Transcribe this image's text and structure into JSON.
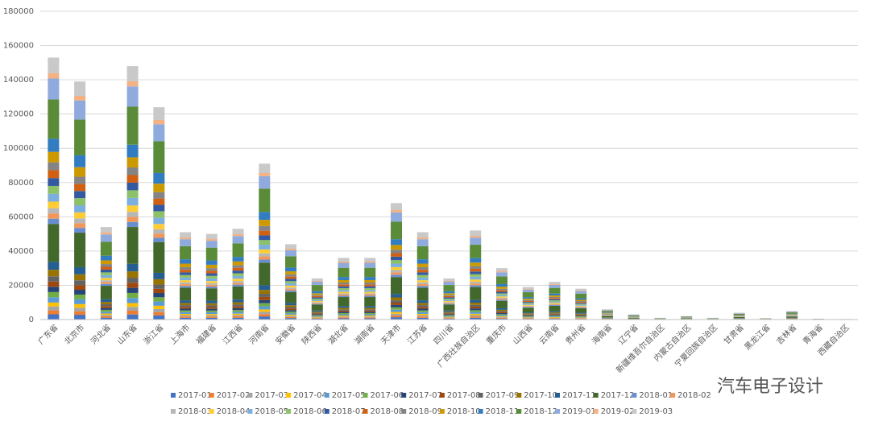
{
  "chart_data": {
    "type": "stacked_bar",
    "watermark": "汽车电子设计",
    "categories": [
      "广东省",
      "北京市",
      "河北省",
      "山东省",
      "浙江省",
      "上海市",
      "福建省",
      "江西省",
      "河南省",
      "安徽省",
      "陕西省",
      "湖北省",
      "湖南省",
      "天津市",
      "江苏省",
      "四川省",
      "广西壮族自治区",
      "重庆市",
      "山西省",
      "云南省",
      "贵州省",
      "海南省",
      "辽宁省",
      "新疆维吾尔自治区",
      "内蒙古自治区",
      "宁夏回族自治区",
      "甘肃省",
      "黑龙江省",
      "吉林省",
      "青海省",
      "西藏自治区"
    ],
    "ylim": [
      0,
      180000
    ],
    "yticks": [
      0,
      20000,
      40000,
      60000,
      80000,
      100000,
      120000,
      140000,
      160000,
      180000
    ],
    "grid": true,
    "series_names": [
      "2017-01",
      "2017-02",
      "2017-03",
      "2017-04",
      "2017-05",
      "2017-06",
      "2017-07",
      "2017-08",
      "2017-09",
      "2017-10",
      "2017-11",
      "2017-12",
      "2018-01",
      "2018-02",
      "2018-03",
      "2018-04",
      "2018-05",
      "2018-06",
      "2018-07",
      "2018-08",
      "2018-09",
      "2018-10",
      "2018-11",
      "2018-12",
      "2019-01",
      "2019-02",
      "2019-03"
    ],
    "colors": [
      "#4472c4",
      "#ed7d31",
      "#a5a5a5",
      "#ffc000",
      "#5b9bd5",
      "#70ad47",
      "#264478",
      "#9e480e",
      "#636363",
      "#997300",
      "#255e91",
      "#43682b",
      "#698ed0",
      "#f1975a",
      "#b7b7b7",
      "#ffcd33",
      "#7cafdd",
      "#8cc168",
      "#335aa1",
      "#d26012",
      "#848484",
      "#cc9a00",
      "#327dc2",
      "#5a8b39",
      "#8faadc",
      "#f4b183",
      "#c9c9c9"
    ],
    "values": [
      [
        3060,
        2295,
        2295,
        2295,
        3060,
        3060,
        3060,
        3060,
        3060,
        3825,
        4590,
        22185,
        3060,
        3060,
        3060,
        3825,
        4590,
        4590,
        4590,
        4590,
        4590,
        6120,
        7650,
        22950,
        12240,
        3060,
        9180
      ],
      [
        2780,
        2085,
        2085,
        2085,
        2780,
        2780,
        2780,
        2780,
        2780,
        3475,
        4170,
        20155,
        2780,
        2780,
        2780,
        3475,
        4170,
        4170,
        4170,
        4170,
        4170,
        5560,
        6950,
        20850,
        11120,
        2780,
        8340
      ],
      [
        1080,
        810,
        810,
        810,
        1080,
        1080,
        1080,
        1080,
        1080,
        1350,
        1620,
        7830,
        1080,
        1080,
        1080,
        1350,
        1620,
        1620,
        1620,
        1620,
        1620,
        2160,
        2700,
        8100,
        4320,
        1080,
        3240
      ],
      [
        2960,
        2220,
        2220,
        2220,
        2960,
        2960,
        2960,
        2960,
        2960,
        3700,
        4440,
        21460,
        2960,
        2960,
        2960,
        3700,
        4440,
        4440,
        4440,
        4440,
        4440,
        5920,
        7400,
        22200,
        11840,
        2960,
        8880
      ],
      [
        2480,
        1860,
        1860,
        1860,
        2480,
        2480,
        2480,
        2480,
        2480,
        3100,
        3720,
        17980,
        2480,
        2480,
        2480,
        3100,
        3720,
        3720,
        3720,
        3720,
        3720,
        4960,
        6200,
        18600,
        9920,
        2480,
        7440
      ],
      [
        1020,
        765,
        765,
        765,
        1020,
        1020,
        1020,
        1020,
        1020,
        1275,
        1530,
        7395,
        1020,
        1020,
        1020,
        1275,
        1530,
        1530,
        1530,
        1530,
        1530,
        2040,
        2550,
        7650,
        4080,
        1020,
        3060
      ],
      [
        1000,
        750,
        750,
        750,
        1000,
        1000,
        1000,
        1000,
        1000,
        1250,
        1500,
        7250,
        1000,
        1000,
        1000,
        1250,
        1500,
        1500,
        1500,
        1500,
        1500,
        2000,
        2500,
        7500,
        4000,
        1000,
        3000
      ],
      [
        1060,
        795,
        795,
        795,
        1060,
        1060,
        1060,
        1060,
        1060,
        1325,
        1590,
        7685,
        1060,
        1060,
        1060,
        1325,
        1590,
        1590,
        1590,
        1590,
        1590,
        2120,
        2650,
        7950,
        4240,
        1060,
        3180
      ],
      [
        1820,
        1365,
        1365,
        1365,
        1820,
        1820,
        1820,
        1820,
        1820,
        2275,
        2730,
        13195,
        1820,
        1820,
        1820,
        2275,
        2730,
        2730,
        2730,
        2730,
        2730,
        3640,
        4550,
        13650,
        7280,
        1820,
        5460
      ],
      [
        880,
        660,
        660,
        660,
        880,
        880,
        880,
        880,
        880,
        1100,
        1320,
        6380,
        880,
        880,
        880,
        1100,
        1320,
        1320,
        1320,
        1320,
        1320,
        1760,
        2200,
        6600,
        3520,
        880,
        2640
      ],
      [
        480,
        360,
        360,
        360,
        480,
        480,
        480,
        480,
        480,
        600,
        720,
        3480,
        480,
        480,
        480,
        600,
        720,
        720,
        720,
        720,
        720,
        960,
        1200,
        3600,
        1920,
        480,
        1440
      ],
      [
        720,
        540,
        540,
        540,
        720,
        720,
        720,
        720,
        720,
        900,
        1080,
        5220,
        720,
        720,
        720,
        900,
        1080,
        1080,
        1080,
        1080,
        1080,
        1440,
        1800,
        5400,
        2880,
        720,
        2160
      ],
      [
        720,
        540,
        540,
        540,
        720,
        720,
        720,
        720,
        720,
        900,
        1080,
        5220,
        720,
        720,
        720,
        900,
        1080,
        1080,
        1080,
        1080,
        1080,
        1440,
        1800,
        5400,
        2880,
        720,
        2160
      ],
      [
        1360,
        1020,
        1020,
        1020,
        1360,
        1360,
        1360,
        1360,
        1360,
        1700,
        2040,
        9860,
        1360,
        1360,
        1360,
        1700,
        2040,
        2040,
        2040,
        2040,
        2040,
        2720,
        3400,
        10200,
        5440,
        1360,
        4080
      ],
      [
        1020,
        765,
        765,
        765,
        1020,
        1020,
        1020,
        1020,
        1020,
        1275,
        1530,
        7395,
        1020,
        1020,
        1020,
        1275,
        1530,
        1530,
        1530,
        1530,
        1530,
        2040,
        2550,
        7650,
        4080,
        1020,
        3060
      ],
      [
        480,
        360,
        360,
        360,
        480,
        480,
        480,
        480,
        480,
        600,
        720,
        3480,
        480,
        480,
        480,
        600,
        720,
        720,
        720,
        720,
        720,
        960,
        1200,
        3600,
        1920,
        480,
        1440
      ],
      [
        1040,
        780,
        780,
        780,
        1040,
        1040,
        1040,
        1040,
        1040,
        1300,
        1560,
        7540,
        1040,
        1040,
        1040,
        1300,
        1560,
        1560,
        1560,
        1560,
        1560,
        2080,
        2600,
        7800,
        4160,
        1040,
        3120
      ],
      [
        600,
        450,
        450,
        450,
        600,
        600,
        600,
        600,
        600,
        750,
        900,
        4350,
        600,
        600,
        600,
        750,
        900,
        900,
        900,
        900,
        900,
        1200,
        1500,
        4500,
        2400,
        600,
        1800
      ],
      [
        380,
        285,
        285,
        285,
        380,
        380,
        380,
        380,
        380,
        475,
        570,
        2755,
        380,
        380,
        380,
        475,
        570,
        570,
        570,
        570,
        570,
        760,
        950,
        2850,
        1520,
        380,
        1140
      ],
      [
        440,
        330,
        330,
        330,
        440,
        440,
        440,
        440,
        440,
        550,
        660,
        3190,
        440,
        440,
        440,
        550,
        660,
        660,
        660,
        660,
        660,
        880,
        1100,
        3300,
        1760,
        440,
        1320
      ],
      [
        360,
        270,
        270,
        270,
        360,
        360,
        360,
        360,
        360,
        450,
        540,
        2610,
        360,
        360,
        360,
        450,
        540,
        540,
        540,
        540,
        540,
        720,
        900,
        2700,
        1440,
        360,
        1080
      ],
      [
        120,
        90,
        90,
        90,
        120,
        120,
        120,
        120,
        120,
        150,
        180,
        870,
        120,
        120,
        120,
        150,
        180,
        180,
        180,
        180,
        180,
        240,
        300,
        900,
        480,
        120,
        360
      ],
      [
        60,
        45,
        45,
        45,
        60,
        60,
        60,
        60,
        60,
        75,
        90,
        435,
        60,
        60,
        60,
        75,
        90,
        90,
        90,
        90,
        90,
        120,
        150,
        450,
        240,
        60,
        180
      ],
      [
        20,
        15,
        15,
        15,
        20,
        20,
        20,
        20,
        20,
        25,
        30,
        145,
        20,
        20,
        20,
        25,
        30,
        30,
        30,
        30,
        30,
        40,
        50,
        150,
        80,
        20,
        60
      ],
      [
        40,
        30,
        30,
        30,
        40,
        40,
        40,
        40,
        40,
        50,
        60,
        290,
        40,
        40,
        40,
        50,
        60,
        60,
        60,
        60,
        60,
        80,
        100,
        300,
        160,
        40,
        120
      ],
      [
        20,
        15,
        15,
        15,
        20,
        20,
        20,
        20,
        20,
        25,
        30,
        145,
        20,
        20,
        20,
        25,
        30,
        30,
        30,
        30,
        30,
        40,
        50,
        150,
        80,
        20,
        60
      ],
      [
        80,
        60,
        60,
        60,
        80,
        80,
        80,
        80,
        80,
        100,
        120,
        580,
        80,
        80,
        80,
        100,
        120,
        120,
        120,
        120,
        120,
        160,
        200,
        600,
        320,
        80,
        240
      ],
      [
        16,
        12,
        12,
        12,
        16,
        16,
        16,
        16,
        16,
        20,
        24,
        116,
        16,
        16,
        16,
        20,
        24,
        24,
        24,
        24,
        24,
        32,
        40,
        120,
        64,
        16,
        48
      ],
      [
        100,
        75,
        75,
        75,
        100,
        100,
        100,
        100,
        100,
        125,
        150,
        725,
        100,
        100,
        100,
        125,
        150,
        150,
        150,
        150,
        150,
        200,
        250,
        750,
        400,
        100,
        300
      ],
      [
        10,
        8,
        8,
        8,
        10,
        10,
        10,
        10,
        10,
        12,
        15,
        72,
        10,
        10,
        10,
        12,
        15,
        15,
        15,
        15,
        15,
        20,
        25,
        75,
        40,
        10,
        30
      ],
      [
        6,
        5,
        5,
        5,
        6,
        6,
        6,
        6,
        6,
        8,
        9,
        44,
        6,
        6,
        6,
        8,
        9,
        9,
        9,
        9,
        9,
        12,
        15,
        45,
        24,
        6,
        18
      ]
    ]
  }
}
